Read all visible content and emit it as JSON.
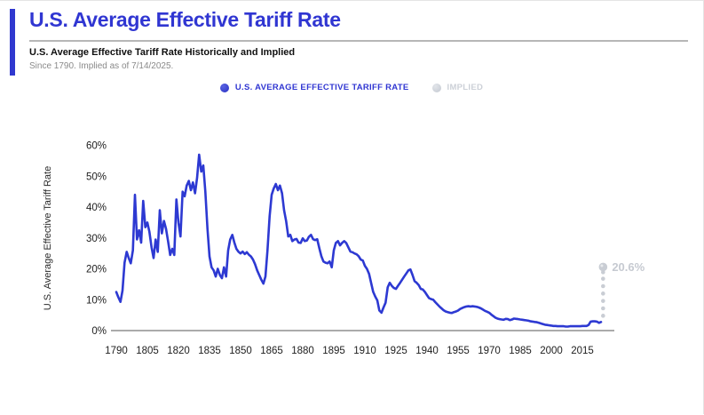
{
  "header": {
    "title": "U.S. Average Effective Tariff Rate",
    "subtitle": "U.S. Average Effective Tariff Rate Historically and Implied",
    "note": "Since 1790. Implied as of 7/14/2025.",
    "accent_color": "#3038cf"
  },
  "legend": {
    "items": [
      {
        "label": "U.S. AVERAGE EFFECTIVE TARIFF RATE",
        "color": "#3036d2"
      },
      {
        "label": "IMPLIED",
        "color": "#ccd0d7"
      }
    ]
  },
  "chart_data": {
    "type": "line",
    "title": "U.S. Average Effective Tariff Rate Historically and Implied",
    "xlabel": "",
    "ylabel": "U.S. Average Effective Tariff Rate",
    "ylim": [
      0,
      60
    ],
    "y_ticks": [
      {
        "value": 0,
        "label": "0%"
      },
      {
        "value": 10,
        "label": "10%"
      },
      {
        "value": 20,
        "label": "20%"
      },
      {
        "value": 30,
        "label": "30%"
      },
      {
        "value": 40,
        "label": "40%"
      },
      {
        "value": 50,
        "label": "50%"
      },
      {
        "value": 60,
        "label": "60%"
      }
    ],
    "x_ticks": [
      1790,
      1805,
      1820,
      1835,
      1850,
      1865,
      1880,
      1895,
      1910,
      1925,
      1940,
      1955,
      1970,
      1985,
      2000,
      2015
    ],
    "grid": false,
    "legend_position": "top-center",
    "series": [
      {
        "name": "U.S. Average Effective Tariff Rate",
        "color": "#2d39d2",
        "style": "solid",
        "points": [
          [
            1790,
            12.5
          ],
          [
            1791,
            10.8
          ],
          [
            1792,
            9.3
          ],
          [
            1793,
            13
          ],
          [
            1794,
            22
          ],
          [
            1795,
            25.5
          ],
          [
            1796,
            23.5
          ],
          [
            1797,
            21.8
          ],
          [
            1798,
            26
          ],
          [
            1799,
            44
          ],
          [
            1800,
            29.5
          ],
          [
            1801,
            32.5
          ],
          [
            1802,
            28.5
          ],
          [
            1803,
            42
          ],
          [
            1804,
            33.5
          ],
          [
            1805,
            35
          ],
          [
            1806,
            32
          ],
          [
            1807,
            27
          ],
          [
            1808,
            23.5
          ],
          [
            1809,
            29.5
          ],
          [
            1810,
            25.5
          ],
          [
            1811,
            39
          ],
          [
            1812,
            31.5
          ],
          [
            1813,
            35.5
          ],
          [
            1814,
            33
          ],
          [
            1815,
            29
          ],
          [
            1816,
            24.5
          ],
          [
            1817,
            26.5
          ],
          [
            1818,
            24.5
          ],
          [
            1819,
            42.5
          ],
          [
            1820,
            35
          ],
          [
            1821,
            30.5
          ],
          [
            1822,
            45
          ],
          [
            1823,
            43.5
          ],
          [
            1824,
            47
          ],
          [
            1825,
            48.5
          ],
          [
            1826,
            45.5
          ],
          [
            1827,
            48
          ],
          [
            1828,
            44.5
          ],
          [
            1829,
            49.5
          ],
          [
            1830,
            57
          ],
          [
            1831,
            51.5
          ],
          [
            1832,
            53.5
          ],
          [
            1833,
            45
          ],
          [
            1834,
            33
          ],
          [
            1835,
            24
          ],
          [
            1836,
            20.5
          ],
          [
            1837,
            19.5
          ],
          [
            1838,
            17.5
          ],
          [
            1839,
            20
          ],
          [
            1840,
            18
          ],
          [
            1841,
            17
          ],
          [
            1842,
            20.5
          ],
          [
            1843,
            17.5
          ],
          [
            1844,
            26
          ],
          [
            1845,
            29.5
          ],
          [
            1846,
            31
          ],
          [
            1847,
            28.5
          ],
          [
            1848,
            26.5
          ],
          [
            1849,
            25.5
          ],
          [
            1850,
            25
          ],
          [
            1851,
            25.6
          ],
          [
            1852,
            24.8
          ],
          [
            1853,
            25.4
          ],
          [
            1854,
            24.6
          ],
          [
            1855,
            24
          ],
          [
            1856,
            23
          ],
          [
            1857,
            21.5
          ],
          [
            1858,
            19.5
          ],
          [
            1859,
            18
          ],
          [
            1860,
            16.5
          ],
          [
            1861,
            15.2
          ],
          [
            1862,
            17.5
          ],
          [
            1863,
            26
          ],
          [
            1864,
            37
          ],
          [
            1865,
            44
          ],
          [
            1866,
            46
          ],
          [
            1867,
            47.5
          ],
          [
            1868,
            45.5
          ],
          [
            1869,
            47
          ],
          [
            1870,
            44.5
          ],
          [
            1871,
            39
          ],
          [
            1872,
            35.5
          ],
          [
            1873,
            30.5
          ],
          [
            1874,
            31
          ],
          [
            1875,
            29
          ],
          [
            1876,
            29.5
          ],
          [
            1877,
            29.7
          ],
          [
            1878,
            28.5
          ],
          [
            1879,
            28.4
          ],
          [
            1880,
            29.9
          ],
          [
            1881,
            29
          ],
          [
            1882,
            29.2
          ],
          [
            1883,
            30.4
          ],
          [
            1884,
            31
          ],
          [
            1885,
            29.6
          ],
          [
            1886,
            29.3
          ],
          [
            1887,
            29.6
          ],
          [
            1888,
            26.7
          ],
          [
            1889,
            24.1
          ],
          [
            1890,
            22.4
          ],
          [
            1891,
            22
          ],
          [
            1892,
            21.8
          ],
          [
            1893,
            22.4
          ],
          [
            1894,
            20.5
          ],
          [
            1895,
            26
          ],
          [
            1896,
            28.4
          ],
          [
            1897,
            29
          ],
          [
            1898,
            27.6
          ],
          [
            1899,
            28.4
          ],
          [
            1900,
            29
          ],
          [
            1901,
            28.4
          ],
          [
            1902,
            27
          ],
          [
            1903,
            25.6
          ],
          [
            1904,
            25.4
          ],
          [
            1905,
            25
          ],
          [
            1906,
            24.7
          ],
          [
            1907,
            24.1
          ],
          [
            1908,
            23
          ],
          [
            1909,
            22.7
          ],
          [
            1910,
            21
          ],
          [
            1911,
            20
          ],
          [
            1912,
            18.4
          ],
          [
            1913,
            15.5
          ],
          [
            1914,
            12.6
          ],
          [
            1915,
            11
          ],
          [
            1916,
            9.8
          ],
          [
            1917,
            6.5
          ],
          [
            1918,
            5.8
          ],
          [
            1919,
            7.5
          ],
          [
            1920,
            9
          ],
          [
            1921,
            14
          ],
          [
            1922,
            15.5
          ],
          [
            1923,
            14.5
          ],
          [
            1924,
            13.8
          ],
          [
            1925,
            13.5
          ],
          [
            1926,
            14.5
          ],
          [
            1927,
            15.5
          ],
          [
            1928,
            16.5
          ],
          [
            1929,
            17.5
          ],
          [
            1930,
            18.5
          ],
          [
            1931,
            19.5
          ],
          [
            1932,
            19.8
          ],
          [
            1933,
            18
          ],
          [
            1934,
            16
          ],
          [
            1935,
            15.5
          ],
          [
            1936,
            14.7
          ],
          [
            1937,
            13.5
          ],
          [
            1938,
            13.3
          ],
          [
            1939,
            12.5
          ],
          [
            1940,
            11.5
          ],
          [
            1941,
            10.5
          ],
          [
            1942,
            10.2
          ],
          [
            1943,
            10
          ],
          [
            1944,
            9.2
          ],
          [
            1945,
            8.5
          ],
          [
            1946,
            7.8
          ],
          [
            1947,
            7.2
          ],
          [
            1948,
            6.6
          ],
          [
            1949,
            6.2
          ],
          [
            1950,
            6
          ],
          [
            1951,
            5.8
          ],
          [
            1952,
            5.7
          ],
          [
            1953,
            6
          ],
          [
            1954,
            6.2
          ],
          [
            1955,
            6.5
          ],
          [
            1956,
            7
          ],
          [
            1957,
            7.3
          ],
          [
            1958,
            7.6
          ],
          [
            1959,
            7.8
          ],
          [
            1960,
            7.9
          ],
          [
            1961,
            7.8
          ],
          [
            1962,
            7.9
          ],
          [
            1963,
            7.8
          ],
          [
            1964,
            7.7
          ],
          [
            1965,
            7.5
          ],
          [
            1966,
            7.2
          ],
          [
            1967,
            6.8
          ],
          [
            1968,
            6.4
          ],
          [
            1969,
            6.1
          ],
          [
            1970,
            5.8
          ],
          [
            1971,
            5.2
          ],
          [
            1972,
            4.7
          ],
          [
            1973,
            4.2
          ],
          [
            1974,
            3.9
          ],
          [
            1975,
            3.7
          ],
          [
            1976,
            3.6
          ],
          [
            1977,
            3.5
          ],
          [
            1978,
            3.8
          ],
          [
            1979,
            3.7
          ],
          [
            1980,
            3.4
          ],
          [
            1981,
            3.6
          ],
          [
            1982,
            3.9
          ],
          [
            1983,
            3.8
          ],
          [
            1984,
            3.7
          ],
          [
            1985,
            3.6
          ],
          [
            1986,
            3.5
          ],
          [
            1987,
            3.4
          ],
          [
            1988,
            3.3
          ],
          [
            1989,
            3.2
          ],
          [
            1990,
            3.0
          ],
          [
            1991,
            2.9
          ],
          [
            1992,
            2.8
          ],
          [
            1993,
            2.7
          ],
          [
            1994,
            2.5
          ],
          [
            1995,
            2.3
          ],
          [
            1996,
            2.1
          ],
          [
            1997,
            1.9
          ],
          [
            1998,
            1.8
          ],
          [
            1999,
            1.7
          ],
          [
            2000,
            1.6
          ],
          [
            2001,
            1.5
          ],
          [
            2002,
            1.5
          ],
          [
            2003,
            1.4
          ],
          [
            2004,
            1.4
          ],
          [
            2005,
            1.4
          ],
          [
            2006,
            1.4
          ],
          [
            2007,
            1.3
          ],
          [
            2008,
            1.3
          ],
          [
            2009,
            1.4
          ],
          [
            2010,
            1.4
          ],
          [
            2011,
            1.4
          ],
          [
            2012,
            1.4
          ],
          [
            2013,
            1.4
          ],
          [
            2014,
            1.4
          ],
          [
            2015,
            1.5
          ],
          [
            2016,
            1.5
          ],
          [
            2017,
            1.5
          ],
          [
            2018,
            1.8
          ],
          [
            2019,
            2.9
          ],
          [
            2020,
            3.0
          ],
          [
            2021,
            3.0
          ],
          [
            2022,
            2.9
          ],
          [
            2023,
            2.5
          ],
          [
            2024,
            2.8
          ]
        ]
      },
      {
        "name": "Implied",
        "color": "#c9cdd4",
        "style": "dotted",
        "year": 2025,
        "value": 20.6,
        "annotation": "20.6%",
        "trail_values": [
          4.8,
          7.2,
          9.6,
          12.0,
          14.4,
          16.8,
          18.9
        ]
      }
    ]
  }
}
